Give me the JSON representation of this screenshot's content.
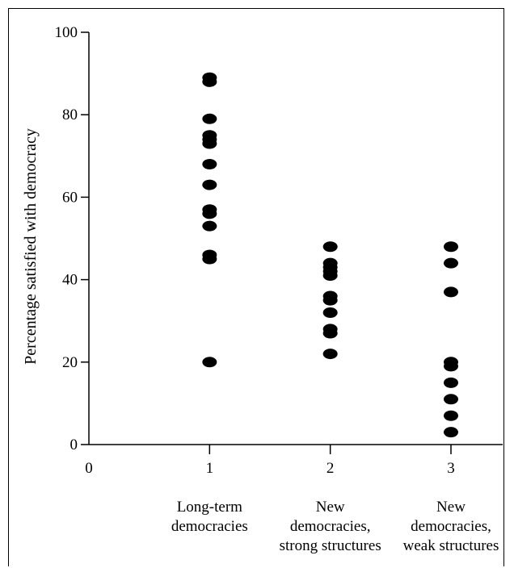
{
  "chart_data": {
    "type": "scatter",
    "title": "",
    "xlabel": "",
    "ylabel": "Percentage satisfied with democracy",
    "xlim": [
      0,
      3.3
    ],
    "ylim": [
      0,
      100
    ],
    "x_ticks": [
      0,
      1,
      2,
      3
    ],
    "y_ticks": [
      0,
      20,
      40,
      60,
      80,
      100
    ],
    "grid": false,
    "legend": "none",
    "marker_color": "#000000",
    "category_labels": [
      {
        "x": 1,
        "lines": [
          "Long-term",
          "democracies"
        ]
      },
      {
        "x": 2,
        "lines": [
          "New",
          "democracies,",
          "strong structures"
        ]
      },
      {
        "x": 3,
        "lines": [
          "New",
          "democracies,",
          "weak structures"
        ]
      }
    ],
    "series": [
      {
        "x": 1,
        "values": [
          89,
          88,
          79,
          75,
          74,
          73,
          68,
          63,
          57,
          56,
          53,
          46,
          45,
          20
        ]
      },
      {
        "x": 2,
        "values": [
          48,
          44,
          43,
          42,
          41,
          36,
          35,
          32,
          28,
          27,
          22
        ]
      },
      {
        "x": 3,
        "values": [
          48,
          44,
          37,
          20,
          19,
          15,
          11,
          7,
          3
        ]
      }
    ]
  }
}
